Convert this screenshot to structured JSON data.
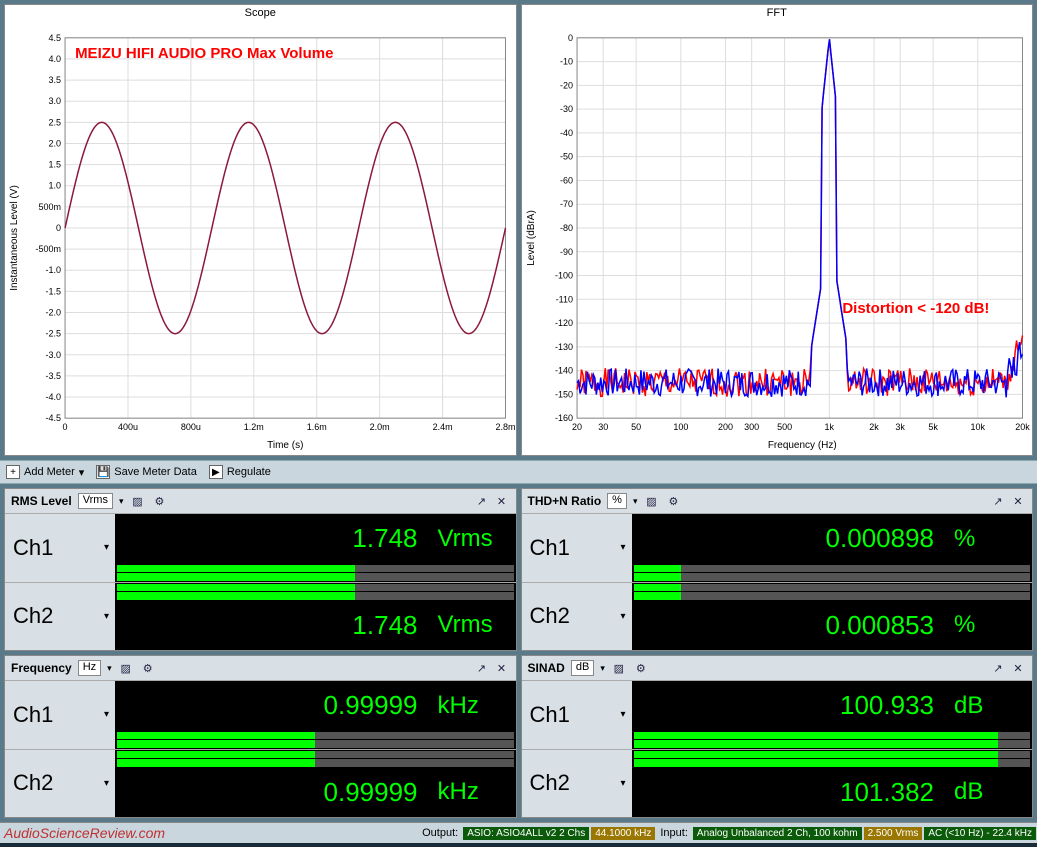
{
  "scope": {
    "title": "Scope",
    "annotation": "MEIZU HIFI AUDIO PRO Max Volume",
    "annotation_color": "#ff0000",
    "xlabel": "Time (s)",
    "ylabel": "Instantaneous Level (V)",
    "xticks": [
      "0",
      "400u",
      "800u",
      "1.2m",
      "1.6m",
      "2.0m",
      "2.4m",
      "2.8m"
    ],
    "yticks": [
      "-4.5",
      "-4.0",
      "-3.5",
      "-3.0",
      "-2.5",
      "-2.0",
      "-1.5",
      "-1.0",
      "-500m",
      "0",
      "500m",
      "1.0",
      "1.5",
      "2.0",
      "2.5",
      "3.0",
      "3.5",
      "4.0",
      "4.5"
    ],
    "ylim": [
      -4.5,
      4.5
    ],
    "xlim": [
      0,
      0.003
    ],
    "line_color": "#8b1a3a",
    "amplitude": 2.5,
    "frequency_hz": 1000,
    "background_color": "#ffffff",
    "grid_color": "#dddddd"
  },
  "fft": {
    "title": "FFT",
    "annotation": "Distortion < -120 dB!",
    "annotation_color": "#ff0000",
    "xlabel": "Frequency (Hz)",
    "ylabel": "Level (dBrA)",
    "xticks": [
      "20",
      "30",
      "50",
      "100",
      "200",
      "300",
      "500",
      "1k",
      "2k",
      "3k",
      "5k",
      "10k",
      "20k"
    ],
    "yticks": [
      "-160",
      "-150",
      "-140",
      "-130",
      "-120",
      "-110",
      "-100",
      "-90",
      "-80",
      "-70",
      "-60",
      "-50",
      "-40",
      "-30",
      "-20",
      "-10",
      "0"
    ],
    "ylim": [
      -160,
      0
    ],
    "xlim": [
      20,
      20000
    ],
    "series_colors": [
      "#ff0000",
      "#0000ff"
    ],
    "fundamental_hz": 1000,
    "noise_floor_db": -145,
    "background_color": "#ffffff",
    "grid_color": "#dddddd"
  },
  "toolbar": {
    "add_meter": "Add Meter",
    "save_meter_data": "Save Meter Data",
    "regulate": "Regulate"
  },
  "meters": [
    {
      "title": "RMS Level",
      "unit_select": "Vrms",
      "channels": [
        {
          "name": "Ch1",
          "value": "1.748",
          "unit": "Vrms",
          "bar_pct": 60
        },
        {
          "name": "Ch2",
          "value": "1.748",
          "unit": "Vrms",
          "bar_pct": 60
        }
      ]
    },
    {
      "title": "THD+N Ratio",
      "unit_select": "%",
      "channels": [
        {
          "name": "Ch1",
          "value": "0.000898",
          "unit": "%",
          "bar_pct": 12
        },
        {
          "name": "Ch2",
          "value": "0.000853",
          "unit": "%",
          "bar_pct": 12
        }
      ]
    },
    {
      "title": "Frequency",
      "unit_select": "Hz",
      "channels": [
        {
          "name": "Ch1",
          "value": "0.99999",
          "unit": "kHz",
          "bar_pct": 50
        },
        {
          "name": "Ch2",
          "value": "0.99999",
          "unit": "kHz",
          "bar_pct": 50
        }
      ]
    },
    {
      "title": "SINAD",
      "unit_select": "dB",
      "channels": [
        {
          "name": "Ch1",
          "value": "100.933",
          "unit": "dB",
          "bar_pct": 92
        },
        {
          "name": "Ch2",
          "value": "101.382",
          "unit": "dB",
          "bar_pct": 92
        }
      ]
    }
  ],
  "status": {
    "watermark": "AudioScienceReview.com",
    "output_label": "Output:",
    "output_device": "ASIO: ASIO4ALL v2 2 Chs",
    "output_rate": "44.1000 kHz",
    "input_label": "Input:",
    "input_device": "Analog Unbalanced 2 Ch, 100 kohm",
    "input_level": "2.500 Vrms",
    "input_coupling": "AC (<10 Hz) - 22.4 kHz"
  },
  "colors": {
    "meter_value": "#00ff00",
    "meter_bg": "#000000",
    "panel_bg": "#d8e0e5",
    "app_bg": "#5a7a8a"
  }
}
